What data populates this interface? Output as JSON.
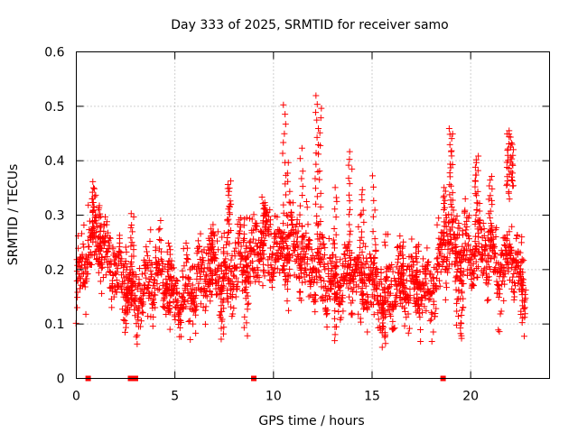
{
  "chart_data": {
    "type": "scatter",
    "title": "Day 333 of 2025, SRMTID for receiver samo",
    "xlabel": "GPS time / hours",
    "ylabel": "SRMTID / TECUs",
    "xlim": [
      0,
      24
    ],
    "ylim": [
      0,
      0.6
    ],
    "xticks": [
      0,
      5,
      10,
      15,
      20
    ],
    "yticks": [
      0,
      0.1,
      0.2,
      0.3,
      0.4,
      0.5,
      0.6
    ],
    "xtick_labels": [
      "0",
      "5",
      "10",
      "15",
      "20"
    ],
    "ytick_labels": [
      "0",
      "0.1",
      "0.2",
      "0.3",
      "0.4",
      "0.5",
      "0.6"
    ],
    "grid": true,
    "marker": "plus",
    "color": "#ff0000",
    "zero_points": {
      "x": [
        0.6,
        2.75,
        3.0,
        9.0,
        18.6
      ],
      "y": [
        0,
        0,
        0,
        0,
        0
      ]
    },
    "series": [
      {
        "name": "SRMTID",
        "trend": {
          "x": [
            0.0,
            0.3,
            0.7,
            1.0,
            1.3,
            1.7,
            2.0,
            2.3,
            2.7,
            3.0,
            3.3,
            3.7,
            4.0,
            4.3,
            4.7,
            5.0,
            5.3,
            5.7,
            6.0,
            6.3,
            6.7,
            7.0,
            7.3,
            7.7,
            8.0,
            8.3,
            8.7,
            9.0,
            9.3,
            9.7,
            10.0,
            10.3,
            10.7,
            11.0,
            11.3,
            11.7,
            12.0,
            12.3,
            12.7,
            13.0,
            13.3,
            13.7,
            14.0,
            14.3,
            14.7,
            15.0,
            15.3,
            15.7,
            16.0,
            16.3,
            16.7,
            17.0,
            17.3,
            17.7,
            18.0,
            18.3,
            18.7,
            19.0,
            19.3,
            19.7,
            20.0,
            20.3,
            20.7,
            21.0,
            21.3,
            21.7,
            22.0,
            22.3,
            22.7
          ],
          "y": [
            0.17,
            0.2,
            0.24,
            0.25,
            0.24,
            0.23,
            0.2,
            0.18,
            0.16,
            0.15,
            0.16,
            0.18,
            0.2,
            0.19,
            0.17,
            0.14,
            0.15,
            0.16,
            0.17,
            0.18,
            0.2,
            0.2,
            0.19,
            0.18,
            0.2,
            0.22,
            0.23,
            0.22,
            0.24,
            0.26,
            0.24,
            0.23,
            0.25,
            0.24,
            0.23,
            0.22,
            0.21,
            0.2,
            0.19,
            0.18,
            0.17,
            0.19,
            0.2,
            0.19,
            0.18,
            0.18,
            0.17,
            0.16,
            0.17,
            0.17,
            0.18,
            0.17,
            0.16,
            0.15,
            0.16,
            0.2,
            0.24,
            0.25,
            0.23,
            0.24,
            0.23,
            0.22,
            0.24,
            0.23,
            0.2,
            0.19,
            0.24,
            0.2,
            0.18
          ]
        },
        "spread": 0.045,
        "start": 0.0,
        "end": 22.8,
        "count": 2200,
        "bursts": [
          {
            "x": 0.9,
            "range": [
              0.26,
              0.36
            ]
          },
          {
            "x": 1.2,
            "range": [
              0.22,
              0.32
            ]
          },
          {
            "x": 2.55,
            "range": [
              0.08,
              0.24
            ]
          },
          {
            "x": 2.85,
            "range": [
              0.15,
              0.3
            ]
          },
          {
            "x": 4.7,
            "range": [
              0.12,
              0.25
            ]
          },
          {
            "x": 6.85,
            "range": [
              0.17,
              0.28
            ]
          },
          {
            "x": 7.4,
            "range": [
              0.07,
              0.2
            ]
          },
          {
            "x": 7.75,
            "range": [
              0.26,
              0.36
            ]
          },
          {
            "x": 8.6,
            "range": [
              0.08,
              0.3
            ]
          },
          {
            "x": 9.5,
            "range": [
              0.24,
              0.33
            ]
          },
          {
            "x": 10.55,
            "range": [
              0.25,
              0.5
            ]
          },
          {
            "x": 10.75,
            "range": [
              0.12,
              0.4
            ]
          },
          {
            "x": 11.4,
            "range": [
              0.14,
              0.42
            ]
          },
          {
            "x": 12.2,
            "range": [
              0.3,
              0.52
            ]
          },
          {
            "x": 12.35,
            "range": [
              0.2,
              0.5
            ]
          },
          {
            "x": 13.15,
            "range": [
              0.07,
              0.35
            ]
          },
          {
            "x": 13.9,
            "range": [
              0.18,
              0.42
            ]
          },
          {
            "x": 14.5,
            "range": [
              0.1,
              0.35
            ]
          },
          {
            "x": 15.1,
            "range": [
              0.12,
              0.37
            ]
          },
          {
            "x": 15.6,
            "range": [
              0.06,
              0.15
            ]
          },
          {
            "x": 16.5,
            "range": [
              0.14,
              0.26
            ]
          },
          {
            "x": 17.3,
            "range": [
              0.12,
              0.25
            ]
          },
          {
            "x": 18.7,
            "range": [
              0.25,
              0.35
            ]
          },
          {
            "x": 19.0,
            "range": [
              0.32,
              0.46
            ]
          },
          {
            "x": 19.3,
            "range": [
              0.1,
              0.3
            ]
          },
          {
            "x": 19.55,
            "range": [
              0.07,
              0.2
            ]
          },
          {
            "x": 20.3,
            "range": [
              0.28,
              0.41
            ]
          },
          {
            "x": 21.0,
            "range": [
              0.25,
              0.37
            ]
          },
          {
            "x": 21.9,
            "range": [
              0.33,
              0.46
            ]
          },
          {
            "x": 22.1,
            "range": [
              0.35,
              0.44
            ]
          },
          {
            "x": 22.6,
            "range": [
              0.1,
              0.22
            ]
          }
        ]
      }
    ]
  }
}
